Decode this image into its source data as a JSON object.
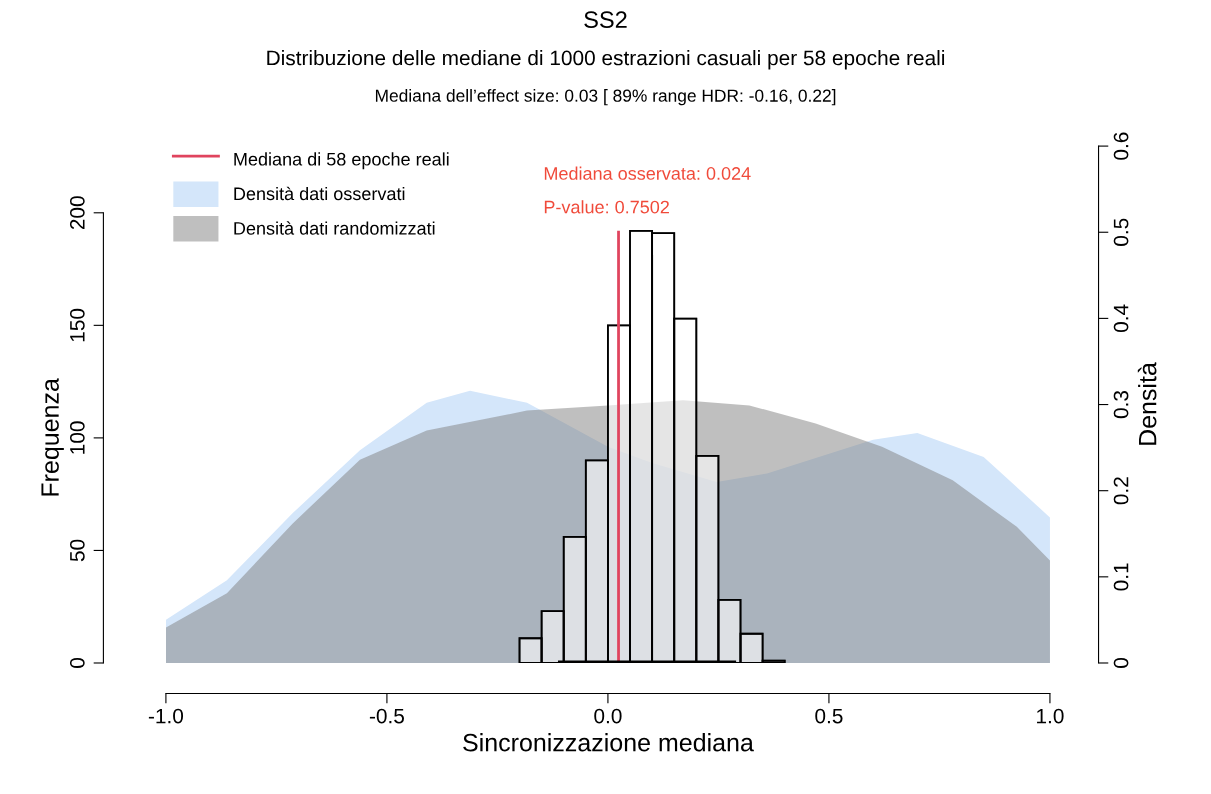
{
  "chart_data": {
    "type": "histogram",
    "title": "SS2",
    "subtitle": "Distribuzione delle mediane di 1000 estrazioni casuali per 58 epoche reali",
    "annotations": [
      "Mediana dell’effect size: 0.03 [ 89% range HDR: -0.16, 0.22]",
      "Mediana osservata: 0.024",
      "P-value: 0.7502"
    ],
    "xlabel": "Sincronizzazione mediana",
    "ylabel": "Frequenza",
    "y2label": "Densità",
    "bins": [
      -0.2,
      -0.15,
      -0.1,
      -0.05,
      0,
      0.05,
      0.1,
      0.15,
      0.2,
      0.25,
      0.3,
      0.35,
      0.4
    ],
    "values": [
      11,
      23,
      56,
      90,
      150,
      192,
      191,
      153,
      92,
      28,
      13,
      1
    ],
    "color": "#ffffff",
    "series": [
      {
        "name": "Mediana di 58 epoche reali",
        "type": "line",
        "color": "#e0445e",
        "x": [
          0.024,
          0.024
        ],
        "values": [
          0,
          192
        ]
      },
      {
        "name": "Densità dati osservati",
        "type": "area",
        "axis": "y2",
        "color": "#d4e6fa",
        "x": [
          -1,
          -0.862,
          -0.713,
          -0.561,
          -0.41,
          -0.312,
          -0.183,
          0,
          0.1,
          0.246,
          0.36,
          0.6,
          0.7,
          0.85,
          1
        ],
        "values": [
          0.05,
          0.096,
          0.174,
          0.247,
          0.302,
          0.316,
          0.302,
          0.251,
          0.232,
          0.21,
          0.22,
          0.259,
          0.267,
          0.239,
          0.169
        ]
      },
      {
        "name": "Densità dati randomizzati",
        "type": "area",
        "axis": "y2",
        "color": "#808080",
        "x": [
          -1,
          -0.862,
          -0.713,
          -0.561,
          -0.41,
          -0.27,
          -0.183,
          0,
          0.17,
          0.32,
          0.47,
          0.62,
          0.78,
          0.925,
          1
        ],
        "values": [
          0.041,
          0.081,
          0.162,
          0.236,
          0.27,
          0.284,
          0.293,
          0.299,
          0.305,
          0.299,
          0.278,
          0.251,
          0.212,
          0.158,
          0.119
        ]
      },
      {
        "type": "line",
        "color": "#000000",
        "x": [
          -0.113,
          0.29
        ],
        "values": [
          0,
          0
        ]
      }
    ],
    "xlim": [
      -1,
      1
    ],
    "xticks": [
      {
        "value": -1,
        "label": "-1.0"
      },
      {
        "value": -0.5,
        "label": "-0.5"
      },
      {
        "value": 0,
        "label": "0.0"
      },
      {
        "value": 0.5,
        "label": "0.5"
      },
      {
        "value": 1,
        "label": "1.0"
      }
    ],
    "ylim": [
      0,
      200
    ],
    "yticks": [
      0,
      50,
      100,
      150,
      200
    ],
    "y2lim": [
      0,
      0.6
    ],
    "y2ticks": [
      0,
      0.1,
      0.2,
      0.3,
      0.4,
      0.5,
      0.6
    ],
    "legend": "top left",
    "grid": false
  }
}
